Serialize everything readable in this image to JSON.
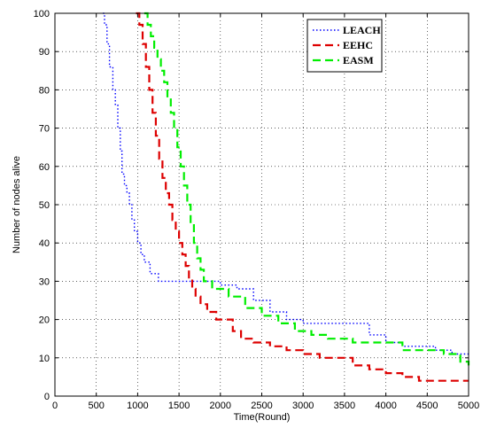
{
  "chart_data": {
    "type": "line",
    "title": "",
    "xlabel": "Time(Round)",
    "ylabel": "Number of nodes alive",
    "xlim": [
      0,
      5000
    ],
    "ylim": [
      0,
      100
    ],
    "xticks": [
      "0",
      "500",
      "1000",
      "1500",
      "2000",
      "2500",
      "3000",
      "3500",
      "4000",
      "4500",
      "5000"
    ],
    "yticks": [
      "0",
      "10",
      "20",
      "30",
      "40",
      "50",
      "60",
      "70",
      "80",
      "90",
      "100"
    ],
    "grid": true,
    "legend_position": "top-right",
    "series": [
      {
        "name": "LEACH",
        "color": "#0000ff",
        "style": "dotted",
        "x": [
          580,
          600,
          630,
          660,
          700,
          730,
          760,
          790,
          810,
          840,
          870,
          900,
          930,
          960,
          1000,
          1040,
          1080,
          1150,
          1250,
          1400,
          1600,
          1800,
          2000,
          2200,
          2400,
          2600,
          2800,
          3000,
          3300,
          3600,
          3800,
          4000,
          4200,
          4400,
          4600,
          4800,
          5000
        ],
        "y": [
          100,
          97,
          92,
          86,
          80,
          76,
          70,
          64,
          58,
          55,
          53,
          50,
          46,
          43,
          40,
          37,
          35,
          32,
          30,
          30,
          30,
          30,
          29,
          28,
          25,
          22,
          20,
          19,
          19,
          19,
          16,
          14,
          13,
          13,
          12,
          11,
          11
        ]
      },
      {
        "name": "EEHC",
        "color": "#dd0000",
        "style": "dashed",
        "x": [
          980,
          1020,
          1060,
          1100,
          1140,
          1180,
          1220,
          1260,
          1300,
          1340,
          1380,
          1420,
          1460,
          1500,
          1540,
          1580,
          1620,
          1660,
          1700,
          1760,
          1840,
          1950,
          2050,
          2150,
          2250,
          2400,
          2600,
          2800,
          3000,
          3200,
          3400,
          3600,
          3800,
          4000,
          4200,
          4400,
          4600,
          4800,
          5000
        ],
        "y": [
          100,
          97,
          92,
          86,
          80,
          74,
          68,
          62,
          57,
          53,
          50,
          46,
          43,
          40,
          37,
          34,
          31,
          28,
          26,
          24,
          22,
          20,
          20,
          17,
          15,
          14,
          13,
          12,
          11,
          10,
          10,
          8,
          7,
          6,
          5,
          4,
          4,
          4,
          4
        ]
      },
      {
        "name": "EASM",
        "color": "#00ee00",
        "style": "dashed",
        "x": [
          1080,
          1120,
          1160,
          1200,
          1240,
          1280,
          1320,
          1360,
          1400,
          1440,
          1480,
          1520,
          1560,
          1600,
          1640,
          1680,
          1720,
          1760,
          1800,
          1900,
          2100,
          2300,
          2500,
          2700,
          2900,
          3100,
          3300,
          3600,
          3900,
          4200,
          4500,
          4700,
          4900,
          5000
        ],
        "y": [
          100,
          97,
          94,
          91,
          88,
          85,
          82,
          78,
          74,
          70,
          65,
          60,
          55,
          50,
          45,
          40,
          36,
          33,
          30,
          28,
          26,
          23,
          21,
          19,
          17,
          16,
          15,
          14,
          14,
          12,
          12,
          11,
          9,
          8
        ]
      }
    ]
  }
}
